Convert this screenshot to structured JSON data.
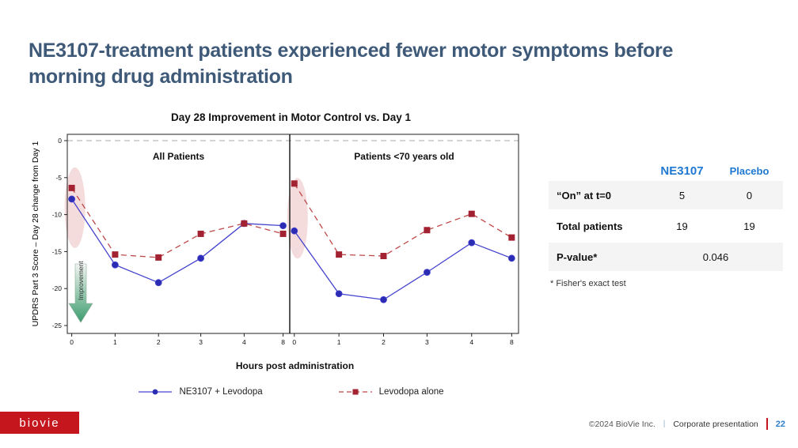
{
  "slide": {
    "title": "NE3107-treatment patients experienced fewer motor symptoms before morning drug administration"
  },
  "chart_data": {
    "type": "line",
    "title": "Day 28 Improvement in Motor Control vs. Day 1",
    "xlabel": "Hours post administration",
    "ylabel": "UPDRS Part 3 Score – Day 28 change from Day 1",
    "ylim": [
      0,
      -25
    ],
    "yticks": [
      0,
      -5,
      -10,
      -15,
      -20,
      -25
    ],
    "xticklabels": [
      "0",
      "1",
      "2",
      "3",
      "4",
      "8"
    ],
    "zero_line": true,
    "improvement_label": "Improvement",
    "highlight_color": "#e9b9b9",
    "panels": [
      {
        "label": "All Patients",
        "highlight_at_x_index": 0,
        "series": [
          {
            "name": "NE3107 + Levodopa",
            "values": [
              -7.9,
              -16.8,
              -19.2,
              -15.9,
              -11.2,
              -11.5
            ]
          },
          {
            "name": "Levodopa alone",
            "values": [
              -6.4,
              -15.4,
              -15.8,
              -12.6,
              -11.2,
              -12.6
            ]
          }
        ]
      },
      {
        "label": "Patients <70 years old",
        "highlight_at_x_index": 0,
        "series": [
          {
            "name": "NE3107 + Levodopa",
            "values": [
              -12.2,
              -20.7,
              -21.5,
              -17.8,
              -13.8,
              -15.9
            ]
          },
          {
            "name": "Levodopa alone",
            "values": [
              -5.8,
              -15.4,
              -15.6,
              -12.1,
              -9.9,
              -13.1
            ]
          }
        ]
      }
    ],
    "legend": [
      {
        "label": "NE3107 + Levodopa",
        "line_color": "#4343cd",
        "marker_color": "#2b2bb4",
        "marker": "circle",
        "dashed": false
      },
      {
        "label": "Levodopa alone",
        "line_color": "#bd4848",
        "marker_color": "#a32232",
        "marker": "square",
        "dashed": true
      }
    ],
    "legend_position": "bottom"
  },
  "table": {
    "col_headers": [
      "NE3107",
      "Placebo"
    ],
    "rows": [
      {
        "label": "“On” at t=0",
        "ne3107": "5",
        "placebo": "0"
      },
      {
        "label": "Total patients",
        "ne3107": "19",
        "placebo": "19"
      },
      {
        "label": "P-value*",
        "span_value": "0.046"
      }
    ],
    "footnote": "* Fisher's exact test"
  },
  "footer": {
    "logo_text": "biovie",
    "copyright": "©2024 BioVie Inc.",
    "separator": "|",
    "label": "Corporate presentation",
    "page_number": "22"
  },
  "colors": {
    "title_text": "#3e5a78",
    "table_header_blue": "#1e78d2",
    "logo_red": "#c4161c",
    "page_number_blue": "#2e7fd0",
    "improvement_green": "#3c9c6e"
  }
}
